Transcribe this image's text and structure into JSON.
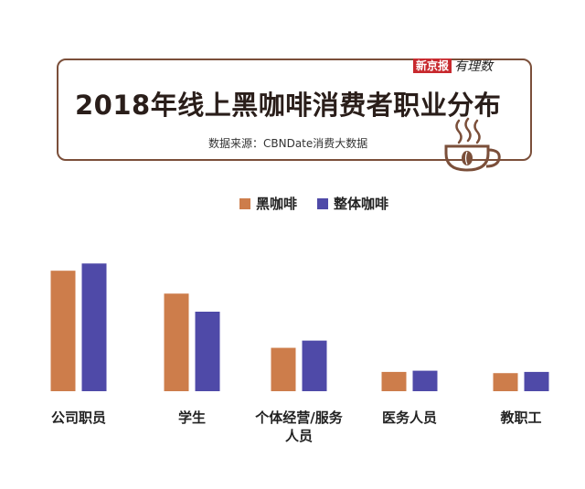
{
  "brand": {
    "paper": "新京报",
    "script": "有理数"
  },
  "title": "2018年线上黑咖啡消费者职业分布",
  "source": "数据来源：CBNDate消费大数据",
  "colors": {
    "black_coffee": "#cd7d4b",
    "all_coffee": "#4f4aa8",
    "frame": "#7b4f3a",
    "cup": "#7b4f3a"
  },
  "icons": [
    "coffee-cup-icon"
  ],
  "chart_data": {
    "type": "bar",
    "title": "2018年线上黑咖啡消费者职业分布",
    "categories": [
      "公司职员",
      "学生",
      "个体经营/服务人员",
      "医务人员",
      "教职工"
    ],
    "category_lines": [
      [
        "公司职员"
      ],
      [
        "学生"
      ],
      [
        "个体经营/服务",
        "人员"
      ],
      [
        "医务人员"
      ],
      [
        "教职工"
      ]
    ],
    "series": [
      {
        "name": "黑咖啡",
        "color": "#cd7d4b",
        "values": [
          100,
          81,
          36,
          16,
          15
        ]
      },
      {
        "name": "整体咖啡",
        "color": "#4f4aa8",
        "values": [
          106,
          66,
          42,
          17,
          16
        ]
      }
    ],
    "ylim": [
      0,
      110
    ],
    "grid": false,
    "legend": "top-center"
  }
}
